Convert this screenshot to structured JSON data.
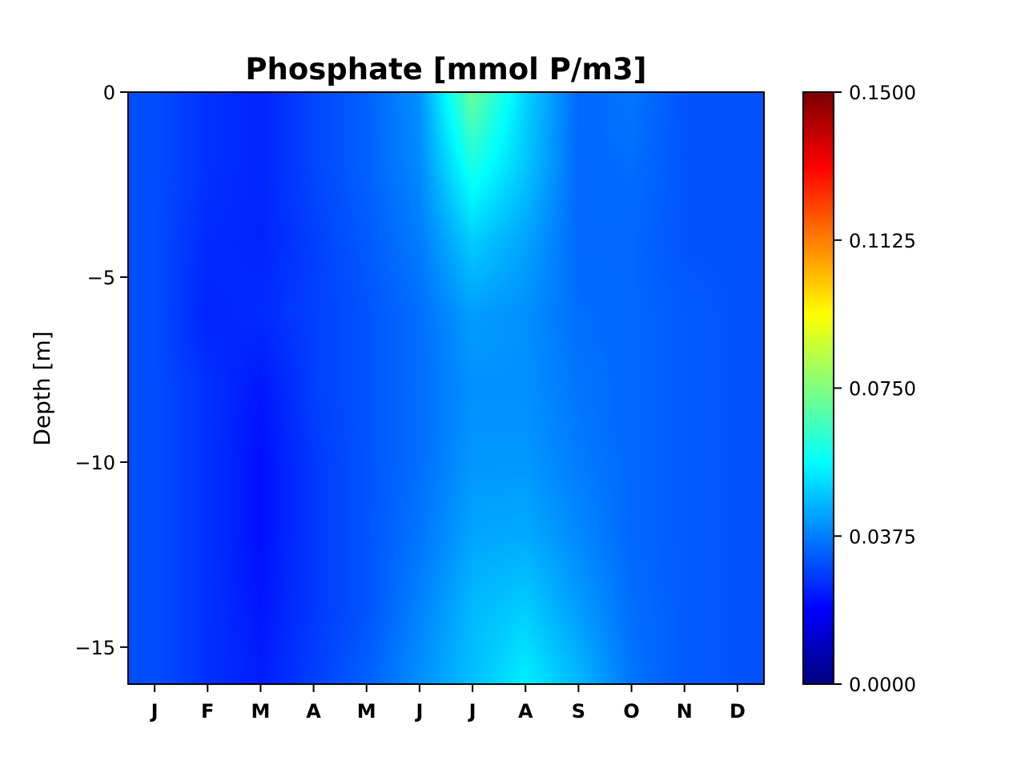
{
  "chart_data": {
    "type": "heatmap",
    "title": "Phosphate [mmol P/m3]",
    "xlabel": "",
    "ylabel": "Depth [m]",
    "x_categories": [
      "J",
      "F",
      "M",
      "A",
      "M",
      "J",
      "J",
      "A",
      "S",
      "O",
      "N",
      "D"
    ],
    "y_ticks": [
      {
        "value": 0,
        "label": "0"
      },
      {
        "value": -5,
        "label": "−5"
      },
      {
        "value": -10,
        "label": "−10"
      },
      {
        "value": -15,
        "label": "−15"
      }
    ],
    "ylim": [
      -16,
      0
    ],
    "depths": [
      0,
      -2,
      -4,
      -6,
      -8,
      -10,
      -12,
      -14,
      -16
    ],
    "values": [
      [
        0.03,
        0.026,
        0.024,
        0.029,
        0.033,
        0.04,
        0.072,
        0.05,
        0.034,
        0.036,
        0.031,
        0.031
      ],
      [
        0.03,
        0.026,
        0.024,
        0.029,
        0.033,
        0.039,
        0.06,
        0.048,
        0.034,
        0.035,
        0.031,
        0.031
      ],
      [
        0.03,
        0.025,
        0.024,
        0.028,
        0.032,
        0.037,
        0.049,
        0.043,
        0.034,
        0.034,
        0.031,
        0.031
      ],
      [
        0.03,
        0.024,
        0.025,
        0.028,
        0.031,
        0.035,
        0.042,
        0.04,
        0.035,
        0.034,
        0.032,
        0.031
      ],
      [
        0.03,
        0.026,
        0.022,
        0.028,
        0.031,
        0.035,
        0.04,
        0.04,
        0.036,
        0.034,
        0.032,
        0.031
      ],
      [
        0.03,
        0.026,
        0.021,
        0.027,
        0.031,
        0.035,
        0.041,
        0.041,
        0.037,
        0.034,
        0.032,
        0.031
      ],
      [
        0.03,
        0.026,
        0.021,
        0.027,
        0.031,
        0.036,
        0.043,
        0.044,
        0.039,
        0.034,
        0.032,
        0.031
      ],
      [
        0.03,
        0.026,
        0.022,
        0.027,
        0.031,
        0.038,
        0.046,
        0.049,
        0.042,
        0.035,
        0.032,
        0.031
      ],
      [
        0.03,
        0.026,
        0.023,
        0.028,
        0.033,
        0.04,
        0.047,
        0.054,
        0.046,
        0.036,
        0.032,
        0.031
      ]
    ],
    "colorbar": {
      "colormap": "jet",
      "min": 0.0,
      "max": 0.15,
      "ticks": [
        "0.0000",
        "0.0375",
        "0.0750",
        "0.1125",
        "0.1500"
      ]
    }
  }
}
